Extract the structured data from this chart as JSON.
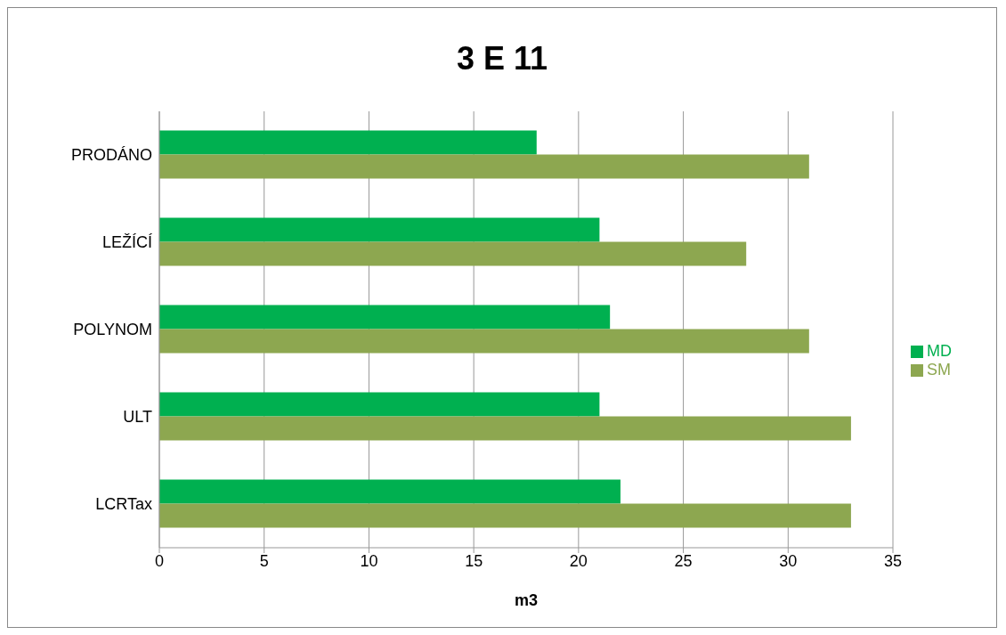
{
  "chart_data": {
    "type": "bar",
    "orientation": "horizontal",
    "title": "3 E 11",
    "xlabel": "m3",
    "categories": [
      "PRODÁNO",
      "LEŽÍCÍ",
      "POLYNOM",
      "ULT",
      "LCRTax"
    ],
    "series": [
      {
        "name": "MD",
        "color": "#00b050",
        "values": [
          18,
          21,
          21.5,
          21,
          22
        ]
      },
      {
        "name": "SM",
        "color": "#8da750",
        "values": [
          31,
          28,
          31,
          33,
          33
        ]
      }
    ],
    "xlim": [
      0,
      35
    ],
    "xticks": [
      0,
      5,
      10,
      15,
      20,
      25,
      30,
      35
    ],
    "grid": "x",
    "legend": "right"
  }
}
